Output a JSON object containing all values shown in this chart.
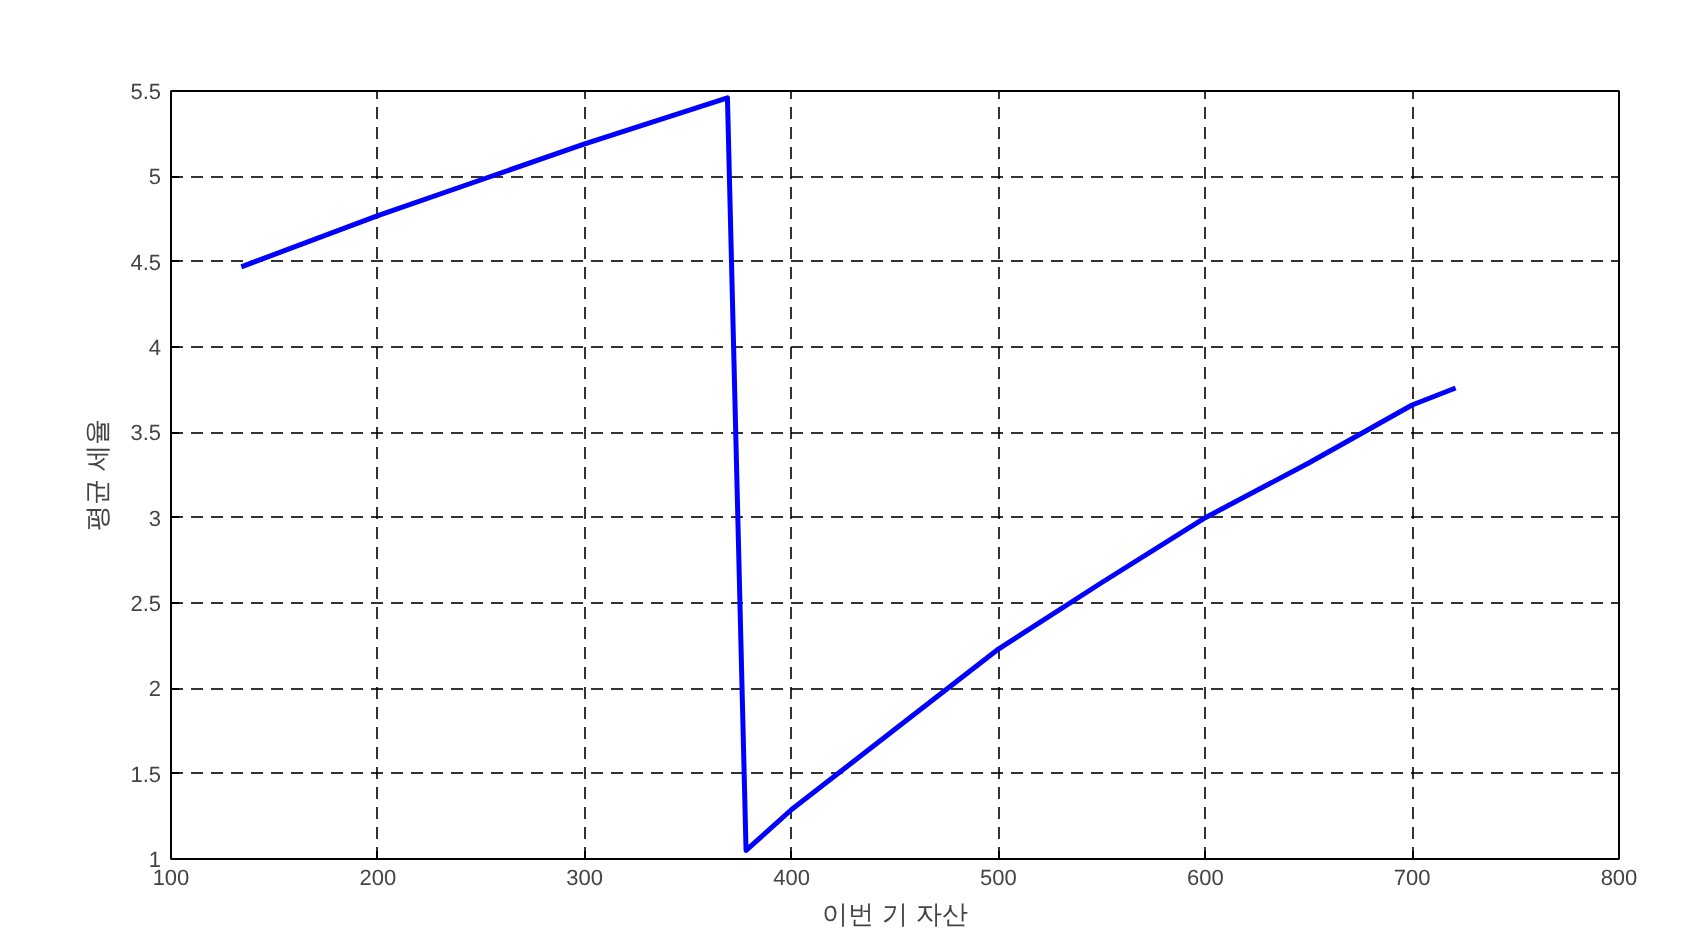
{
  "chart_data": {
    "type": "line",
    "xlabel": "이번 기 자산",
    "ylabel": "평균 세율",
    "series": [
      {
        "color": "#0000ff",
        "x": [
          134,
          200,
          250,
          300,
          369,
          378,
          400,
          450,
          500,
          550,
          600,
          650,
          700,
          721
        ],
        "values": [
          4.47,
          4.77,
          4.98,
          5.19,
          5.46,
          1.05,
          1.29,
          1.76,
          2.23,
          2.62,
          3.0,
          3.32,
          3.66,
          3.76
        ]
      }
    ],
    "xlim": [
      100,
      800
    ],
    "xticks": [
      100,
      200,
      300,
      400,
      500,
      600,
      700,
      800
    ],
    "ylim": [
      1,
      5.5
    ],
    "yticks": [
      1,
      1.5,
      2,
      2.5,
      3,
      3.5,
      4,
      4.5,
      5,
      5.5
    ],
    "grid": true,
    "line_style": "solid",
    "marker": "none"
  }
}
